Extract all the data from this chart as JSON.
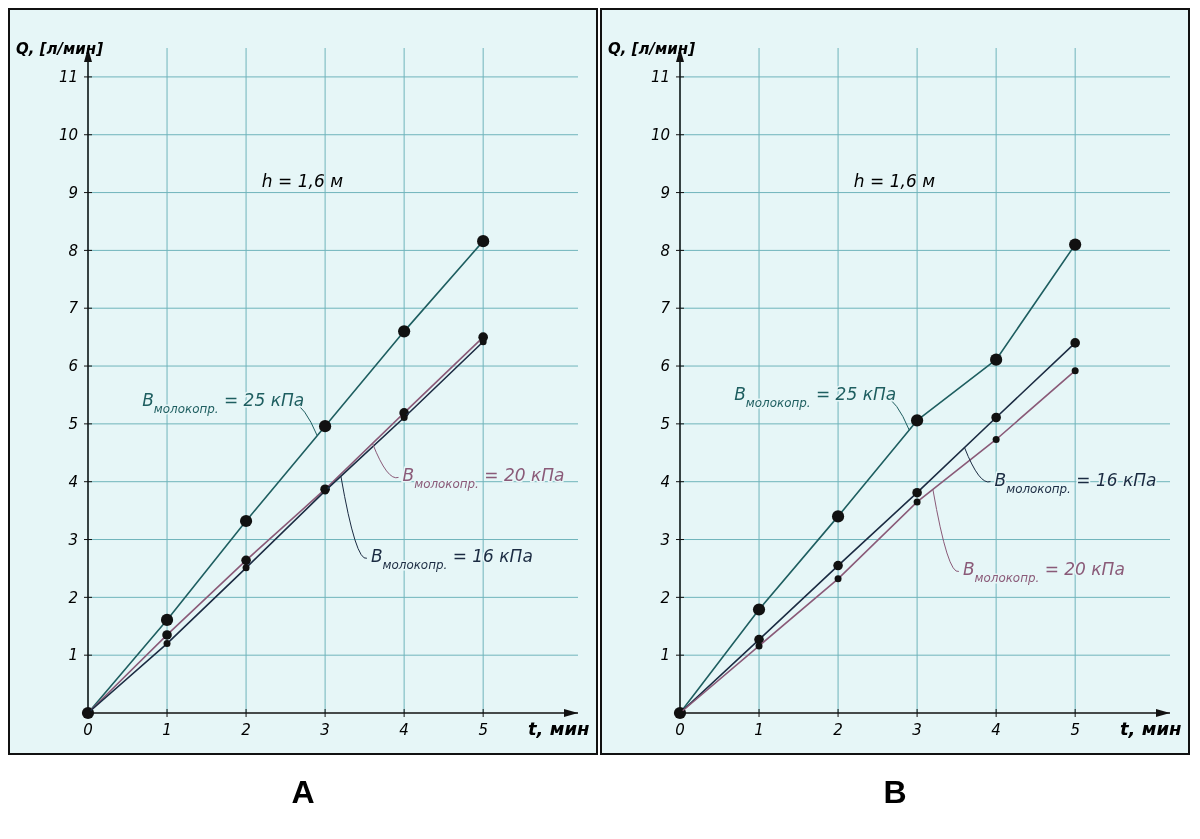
{
  "chart_data": [
    {
      "type": "line",
      "title": "A",
      "xlabel": "t, мин",
      "ylabel": "Q, [л/мин]",
      "x": [
        0,
        1,
        2,
        3,
        4,
        5
      ],
      "xlim": [
        0,
        6.2
      ],
      "ylim": [
        0,
        11.5
      ],
      "xticks": [
        {
          "value": 0,
          "label": "0"
        },
        1,
        2,
        3,
        4,
        5
      ],
      "yticks": [
        1,
        2,
        3,
        4,
        5,
        6,
        7,
        8,
        9,
        10,
        11
      ],
      "grid": true,
      "marker": "circle",
      "line_style": "solid",
      "annotations": [
        "h = 1,6 м"
      ],
      "series": [
        {
          "name": "B$_{молокопр.}$ = 25 кПа",
          "color": "#1e5e60",
          "values": [
            0,
            1.61,
            3.32,
            4.96,
            6.6,
            8.16
          ]
        },
        {
          "name": "B$_{молокопр.}$ = 20 кПа",
          "color": "#8a5a78",
          "values": [
            0,
            1.35,
            2.64,
            3.87,
            5.19,
            6.5
          ]
        },
        {
          "name": "B$_{молокопр.}$ = 16 кПа",
          "color": "#1b2b42",
          "values": [
            0,
            1.2,
            2.51,
            3.84,
            5.11,
            6.42
          ]
        }
      ]
    },
    {
      "type": "line",
      "title": "B",
      "xlabel": "t, мин",
      "ylabel": "Q, [л/мин]",
      "x": [
        0,
        1,
        2,
        3,
        4,
        5
      ],
      "xlim": [
        0,
        6.2
      ],
      "ylim": [
        0,
        11.5
      ],
      "xticks": [
        {
          "value": 0,
          "label": "0"
        },
        1,
        2,
        3,
        4,
        5
      ],
      "yticks": [
        1,
        2,
        3,
        4,
        5,
        6,
        7,
        8,
        9,
        10,
        11
      ],
      "grid": true,
      "marker": "circle",
      "line_style": "solid",
      "annotations": [
        "h = 1,6 м"
      ],
      "series": [
        {
          "name": "B$_{молокопр.}$ = 25 кПа",
          "color": "#1e5e60",
          "values": [
            0,
            1.79,
            3.4,
            5.06,
            6.11,
            8.1
          ]
        },
        {
          "name": "B$_{молокопр.}$ = 16 кПа",
          "color": "#1b2b42",
          "values": [
            0,
            1.27,
            2.55,
            3.81,
            5.11,
            6.4
          ]
        },
        {
          "name": "B$_{молокопр.}$ = 20 кПа",
          "color": "#8a5a78",
          "values": [
            0,
            1.16,
            2.32,
            3.65,
            4.73,
            5.92
          ]
        }
      ]
    }
  ]
}
